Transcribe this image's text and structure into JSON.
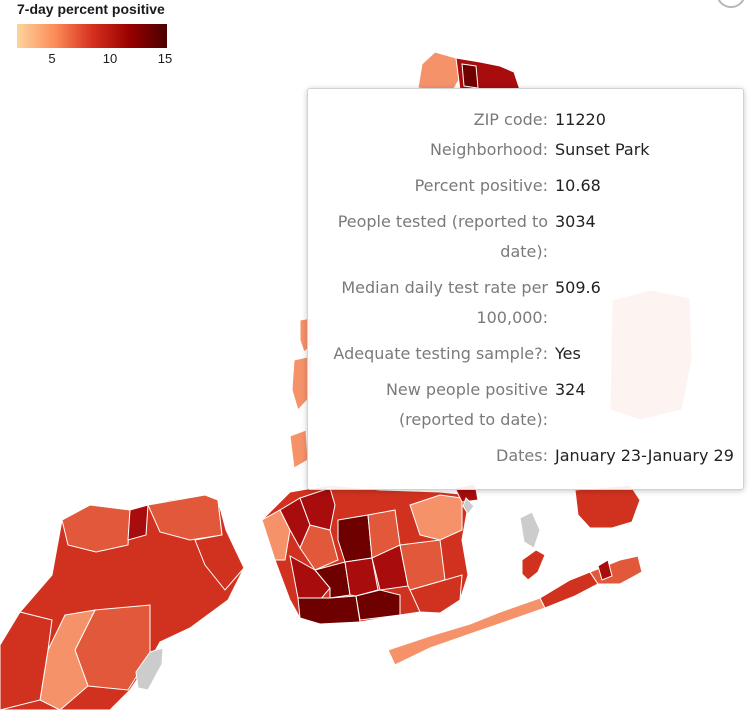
{
  "legend": {
    "title": "7-day percent positive",
    "ticks": [
      "5",
      "10",
      "15"
    ],
    "colors": [
      "#fdd49e",
      "#fc8d59",
      "#d7301f",
      "#990000",
      "#4a0000"
    ]
  },
  "map": {
    "colors": {
      "light": "#f6926a",
      "medium": "#e2583a",
      "red": "#d1321f",
      "dark": "#a80c0c",
      "darkest": "#6e0000",
      "no_data": "#cccccc"
    }
  },
  "tooltip": {
    "rows": [
      {
        "label": "ZIP code:",
        "value": "11220"
      },
      {
        "label": "Neighborhood:",
        "value": "Sunset Park"
      },
      {
        "label": "Percent positive:",
        "value": "10.68"
      },
      {
        "label": "People tested (reported to date):",
        "value": "3034"
      },
      {
        "label": "Median daily test rate per 100,000:",
        "value": "509.6"
      },
      {
        "label": "Adequate testing sample?:",
        "value": "Yes"
      },
      {
        "label": "New people positive (reported to date):",
        "value": "324"
      },
      {
        "label": "Dates:",
        "value": "January 23-January 29"
      }
    ]
  }
}
